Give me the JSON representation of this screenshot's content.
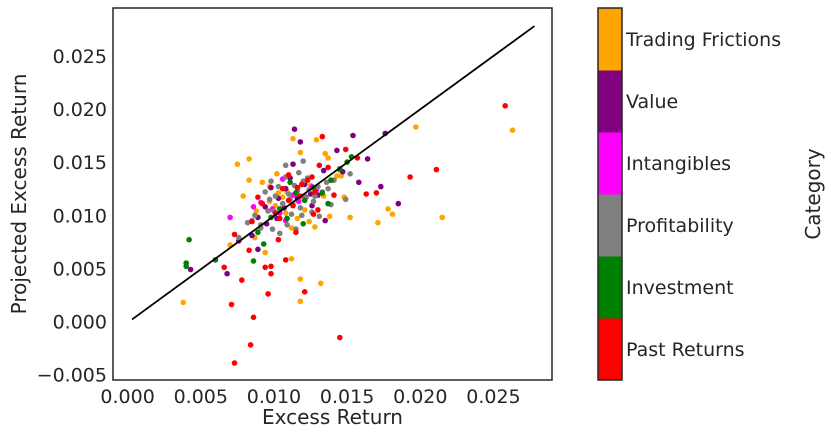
{
  "chart_data": {
    "type": "scatter",
    "title": "",
    "xlabel": "Excess Return",
    "ylabel": "Projected Excess Return",
    "xlim": [
      -0.001,
      0.029
    ],
    "ylim": [
      -0.0055,
      0.0295
    ],
    "x_ticks": [
      0.0,
      0.005,
      0.01,
      0.015,
      0.02,
      0.025
    ],
    "x_tick_labels": [
      "0.000",
      "0.005",
      "0.010",
      "0.015",
      "0.020",
      "0.025"
    ],
    "y_ticks": [
      -0.005,
      0.0,
      0.005,
      0.01,
      0.015,
      0.02,
      0.025
    ],
    "y_tick_labels": [
      "−0.005",
      "0.000",
      "0.005",
      "0.010",
      "0.015",
      "0.020",
      "0.025"
    ],
    "grid": false,
    "reference_line": {
      "x": [
        0.0003,
        0.0278
      ],
      "y": [
        0.0002,
        0.0278
      ],
      "color": "#000000"
    },
    "colorbar": {
      "label": "Category",
      "categories": [
        {
          "name": "Past Returns",
          "color": "#ff0000"
        },
        {
          "name": "Investment",
          "color": "#008000"
        },
        {
          "name": "Profitability",
          "color": "#808080"
        },
        {
          "name": "Intangibles",
          "color": "#ff00ff"
        },
        {
          "name": "Value",
          "color": "#800080"
        },
        {
          "name": "Trading Frictions",
          "color": "#ffa500"
        }
      ]
    },
    "series": [
      {
        "category": "Trading Frictions",
        "color": "#ffa500",
        "points": [
          [
            0.0038,
            0.0018
          ],
          [
            0.0075,
            0.0148
          ],
          [
            0.0083,
            0.0153
          ],
          [
            0.0079,
            0.0118
          ],
          [
            0.0088,
            0.0104
          ],
          [
            0.0092,
            0.0131
          ],
          [
            0.0097,
            0.0127
          ],
          [
            0.0103,
            0.0121
          ],
          [
            0.0108,
            0.0102
          ],
          [
            0.0112,
            0.0088
          ],
          [
            0.0116,
            0.0097
          ],
          [
            0.0121,
            0.0105
          ],
          [
            0.0125,
            0.0128
          ],
          [
            0.0118,
            0.0159
          ],
          [
            0.0113,
            0.0172
          ],
          [
            0.0129,
            0.0171
          ],
          [
            0.0137,
            0.0154
          ],
          [
            0.0143,
            0.0137
          ],
          [
            0.0148,
            0.0117
          ],
          [
            0.0152,
            0.0098
          ],
          [
            0.0171,
            0.0093
          ],
          [
            0.0178,
            0.0106
          ],
          [
            0.0181,
            0.0101
          ],
          [
            0.0197,
            0.0183
          ],
          [
            0.0215,
            0.0098
          ],
          [
            0.0263,
            0.018
          ],
          [
            0.0112,
            0.0059
          ],
          [
            0.0118,
            0.004
          ],
          [
            0.0118,
            0.0019
          ],
          [
            0.0094,
            0.0065
          ],
          [
            0.0087,
            0.0079
          ],
          [
            0.0102,
            0.0139
          ],
          [
            0.0106,
            0.0117
          ],
          [
            0.0134,
            0.0118
          ],
          [
            0.0138,
            0.0099
          ],
          [
            0.0146,
            0.0137
          ],
          [
            0.0101,
            0.0109
          ],
          [
            0.0097,
            0.0113
          ],
          [
            0.0109,
            0.0122
          ],
          [
            0.0132,
            0.0036
          ],
          [
            0.0124,
            0.0094
          ],
          [
            0.0128,
            0.0089
          ],
          [
            0.007,
            0.0072
          ],
          [
            0.0083,
            0.0133
          ],
          [
            0.0135,
            0.0158
          ],
          [
            0.0116,
            0.0114
          ]
        ]
      },
      {
        "category": "Value",
        "color": "#800080",
        "points": [
          [
            0.0043,
            0.0049
          ],
          [
            0.0068,
            0.0045
          ],
          [
            0.0076,
            0.0076
          ],
          [
            0.0085,
            0.0081
          ],
          [
            0.0089,
            0.0098
          ],
          [
            0.0094,
            0.0108
          ],
          [
            0.0098,
            0.0126
          ],
          [
            0.0103,
            0.0116
          ],
          [
            0.0107,
            0.0107
          ],
          [
            0.0111,
            0.0135
          ],
          [
            0.0116,
            0.0116
          ],
          [
            0.0121,
            0.0129
          ],
          [
            0.0126,
            0.0109
          ],
          [
            0.013,
            0.0119
          ],
          [
            0.0134,
            0.0142
          ],
          [
            0.0139,
            0.0133
          ],
          [
            0.0143,
            0.0161
          ],
          [
            0.0147,
            0.0141
          ],
          [
            0.0154,
            0.0175
          ],
          [
            0.0158,
            0.0131
          ],
          [
            0.0164,
            0.0153
          ],
          [
            0.0173,
            0.0127
          ],
          [
            0.0176,
            0.0177
          ],
          [
            0.0185,
            0.0111
          ],
          [
            0.0135,
            0.0095
          ],
          [
            0.0114,
            0.0181
          ],
          [
            0.0118,
            0.0169
          ],
          [
            0.0102,
            0.0097
          ],
          [
            0.0089,
            0.0068
          ],
          [
            0.0095,
            0.0092
          ],
          [
            0.0125,
            0.012
          ],
          [
            0.0108,
            0.0125
          ],
          [
            0.0113,
            0.0148
          ]
        ]
      },
      {
        "category": "Intangibles",
        "color": "#ff00ff",
        "points": [
          [
            0.007,
            0.0098
          ],
          [
            0.0086,
            0.0108
          ],
          [
            0.0091,
            0.0112
          ],
          [
            0.0099,
            0.0106
          ],
          [
            0.0104,
            0.0102
          ],
          [
            0.0108,
            0.0095
          ],
          [
            0.0113,
            0.0119
          ],
          [
            0.0117,
            0.0113
          ],
          [
            0.0121,
            0.0118
          ],
          [
            0.0126,
            0.0127
          ],
          [
            0.0129,
            0.0124
          ],
          [
            0.0106,
            0.0134
          ]
        ]
      },
      {
        "category": "Profitability",
        "color": "#808080",
        "points": [
          [
            0.0076,
            0.0079
          ],
          [
            0.0082,
            0.0093
          ],
          [
            0.0087,
            0.01
          ],
          [
            0.0091,
            0.0091
          ],
          [
            0.0094,
            0.0122
          ],
          [
            0.0097,
            0.0115
          ],
          [
            0.01,
            0.0104
          ],
          [
            0.0103,
            0.0127
          ],
          [
            0.0106,
            0.0111
          ],
          [
            0.0108,
            0.0136
          ],
          [
            0.011,
            0.012
          ],
          [
            0.0112,
            0.0101
          ],
          [
            0.0114,
            0.0128
          ],
          [
            0.0116,
            0.0123
          ],
          [
            0.0118,
            0.0107
          ],
          [
            0.012,
            0.0132
          ],
          [
            0.0122,
            0.0117
          ],
          [
            0.0124,
            0.0124
          ],
          [
            0.0127,
            0.0113
          ],
          [
            0.013,
            0.0127
          ],
          [
            0.0133,
            0.0122
          ],
          [
            0.0136,
            0.0131
          ],
          [
            0.0139,
            0.011
          ],
          [
            0.0141,
            0.0133
          ],
          [
            0.0145,
            0.0144
          ],
          [
            0.0149,
            0.0115
          ],
          [
            0.0152,
            0.0139
          ],
          [
            0.0109,
            0.0091
          ],
          [
            0.0115,
            0.0087
          ],
          [
            0.0099,
            0.0087
          ],
          [
            0.0104,
            0.0083
          ],
          [
            0.0091,
            0.0088
          ],
          [
            0.0085,
            0.0095
          ],
          [
            0.0108,
            0.0147
          ],
          [
            0.012,
            0.0151
          ],
          [
            0.0126,
            0.0103
          ],
          [
            0.0131,
            0.0099
          ],
          [
            0.0119,
            0.01
          ],
          [
            0.0096,
            0.0104
          ],
          [
            0.0113,
            0.011
          ],
          [
            0.0101,
            0.0118
          ],
          [
            0.0098,
            0.0132
          ],
          [
            0.0117,
            0.014
          ],
          [
            0.0123,
            0.0135
          ],
          [
            0.0128,
            0.0118
          ],
          [
            0.0137,
            0.0125
          ],
          [
            0.0111,
            0.0115
          ]
        ]
      },
      {
        "category": "Investment",
        "color": "#008000",
        "points": [
          [
            0.004,
            0.0055
          ],
          [
            0.004,
            0.0052
          ],
          [
            0.0042,
            0.0077
          ],
          [
            0.006,
            0.0058
          ],
          [
            0.0086,
            0.0057
          ],
          [
            0.0093,
            0.0073
          ],
          [
            0.0098,
            0.0098
          ],
          [
            0.0104,
            0.0106
          ],
          [
            0.0109,
            0.0097
          ],
          [
            0.0115,
            0.0121
          ],
          [
            0.0121,
            0.0114
          ],
          [
            0.0127,
            0.0126
          ],
          [
            0.0133,
            0.0121
          ],
          [
            0.0139,
            0.0133
          ],
          [
            0.0145,
            0.0143
          ],
          [
            0.015,
            0.015
          ],
          [
            0.0153,
            0.0155
          ],
          [
            0.012,
            0.0092
          ],
          [
            0.0137,
            0.0111
          ],
          [
            0.0111,
            0.0131
          ],
          [
            0.0089,
            0.0084
          ]
        ]
      },
      {
        "category": "Past Returns",
        "color": "#ff0000",
        "points": [
          [
            0.0066,
            0.0051
          ],
          [
            0.0073,
            0.0082
          ],
          [
            0.0073,
            -0.0039
          ],
          [
            0.0084,
            -0.0022
          ],
          [
            0.0086,
            0.0004
          ],
          [
            0.0071,
            0.0016
          ],
          [
            0.0078,
            0.0039
          ],
          [
            0.0083,
            0.0067
          ],
          [
            0.0085,
            0.0094
          ],
          [
            0.0089,
            0.0117
          ],
          [
            0.0092,
            0.0111
          ],
          [
            0.0096,
            0.0026
          ],
          [
            0.0098,
            0.0045
          ],
          [
            0.0101,
            0.0102
          ],
          [
            0.0103,
            0.0077
          ],
          [
            0.0106,
            0.0125
          ],
          [
            0.0108,
            0.0058
          ],
          [
            0.011,
            0.0114
          ],
          [
            0.0113,
            0.0109
          ],
          [
            0.0115,
            0.0084
          ],
          [
            0.0118,
            0.0118
          ],
          [
            0.0121,
            0.0028
          ],
          [
            0.0123,
            0.0133
          ],
          [
            0.0126,
            0.0136
          ],
          [
            0.0128,
            0.0122
          ],
          [
            0.0131,
            0.0147
          ],
          [
            0.0133,
            0.0174
          ],
          [
            0.0137,
            0.0145
          ],
          [
            0.0141,
            0.0119
          ],
          [
            0.0145,
            -0.0015
          ],
          [
            0.0149,
            0.0162
          ],
          [
            0.0157,
            0.0154
          ],
          [
            0.0163,
            0.012
          ],
          [
            0.017,
            0.0121
          ],
          [
            0.0193,
            0.0136
          ],
          [
            0.0211,
            0.0143
          ],
          [
            0.0258,
            0.0203
          ],
          [
            0.0098,
            0.0052
          ],
          [
            0.0094,
            0.0051
          ],
          [
            0.0116,
            0.0126
          ],
          [
            0.013,
            0.0105
          ],
          [
            0.0104,
            0.0097
          ],
          [
            0.0119,
            0.0129
          ],
          [
            0.0127,
            0.0101
          ],
          [
            0.011,
            0.0138
          ]
        ]
      }
    ]
  }
}
